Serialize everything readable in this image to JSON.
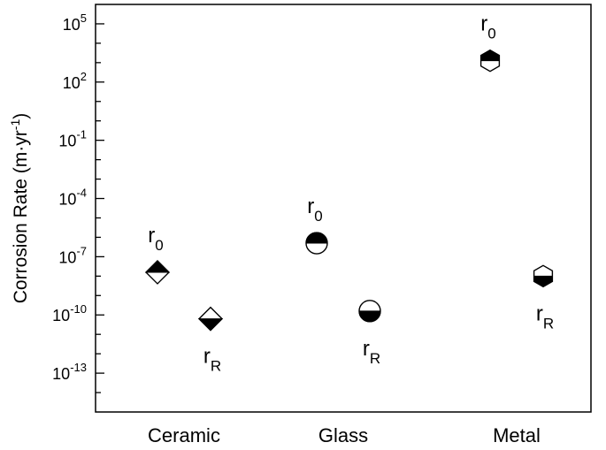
{
  "chart_data": {
    "type": "scatter",
    "ylabel": "Corrosion Rate (m·yr⁻¹)",
    "ylabel_parts": {
      "main": "Corrosion Rate (m·yr",
      "sup": "-1",
      "close": ")"
    },
    "y_scale": "log",
    "ylim_log10": [
      -15,
      6
    ],
    "y_major_ticks": [
      {
        "base": "10",
        "exp": "5",
        "log10": 5
      },
      {
        "base": "10",
        "exp": "2",
        "log10": 2
      },
      {
        "base": "10",
        "exp": "-1",
        "log10": -1
      },
      {
        "base": "10",
        "exp": "-4",
        "log10": -4
      },
      {
        "base": "10",
        "exp": "-7",
        "log10": -7
      },
      {
        "base": "10",
        "exp": "-10",
        "log10": -10
      },
      {
        "base": "10",
        "exp": "-13",
        "log10": -13
      }
    ],
    "categories": [
      "Ceramic",
      "Glass",
      "Metal"
    ],
    "grid": false,
    "legend": "none",
    "points": [
      {
        "category": "Ceramic",
        "label": "r",
        "sub": "0",
        "y_log10": -7.8,
        "marker": "diamond",
        "filled": "top",
        "label_pos": "above"
      },
      {
        "category": "Ceramic",
        "label": "r",
        "sub": "R",
        "y_log10": -10.2,
        "marker": "diamond",
        "filled": "bottom",
        "label_pos": "below"
      },
      {
        "category": "Glass",
        "label": "r",
        "sub": "0",
        "y_log10": -6.3,
        "marker": "circle",
        "filled": "top",
        "label_pos": "above"
      },
      {
        "category": "Glass",
        "label": "r",
        "sub": "R",
        "y_log10": -9.8,
        "marker": "circle",
        "filled": "bottom",
        "label_pos": "below"
      },
      {
        "category": "Metal",
        "label": "r",
        "sub": "0",
        "y_log10": 3.1,
        "marker": "hexagon",
        "filled": "top",
        "label_pos": "above"
      },
      {
        "category": "Metal",
        "label": "r",
        "sub": "R",
        "y_log10": -8.0,
        "marker": "hexagon",
        "filled": "bottom",
        "label_pos": "below"
      }
    ]
  }
}
